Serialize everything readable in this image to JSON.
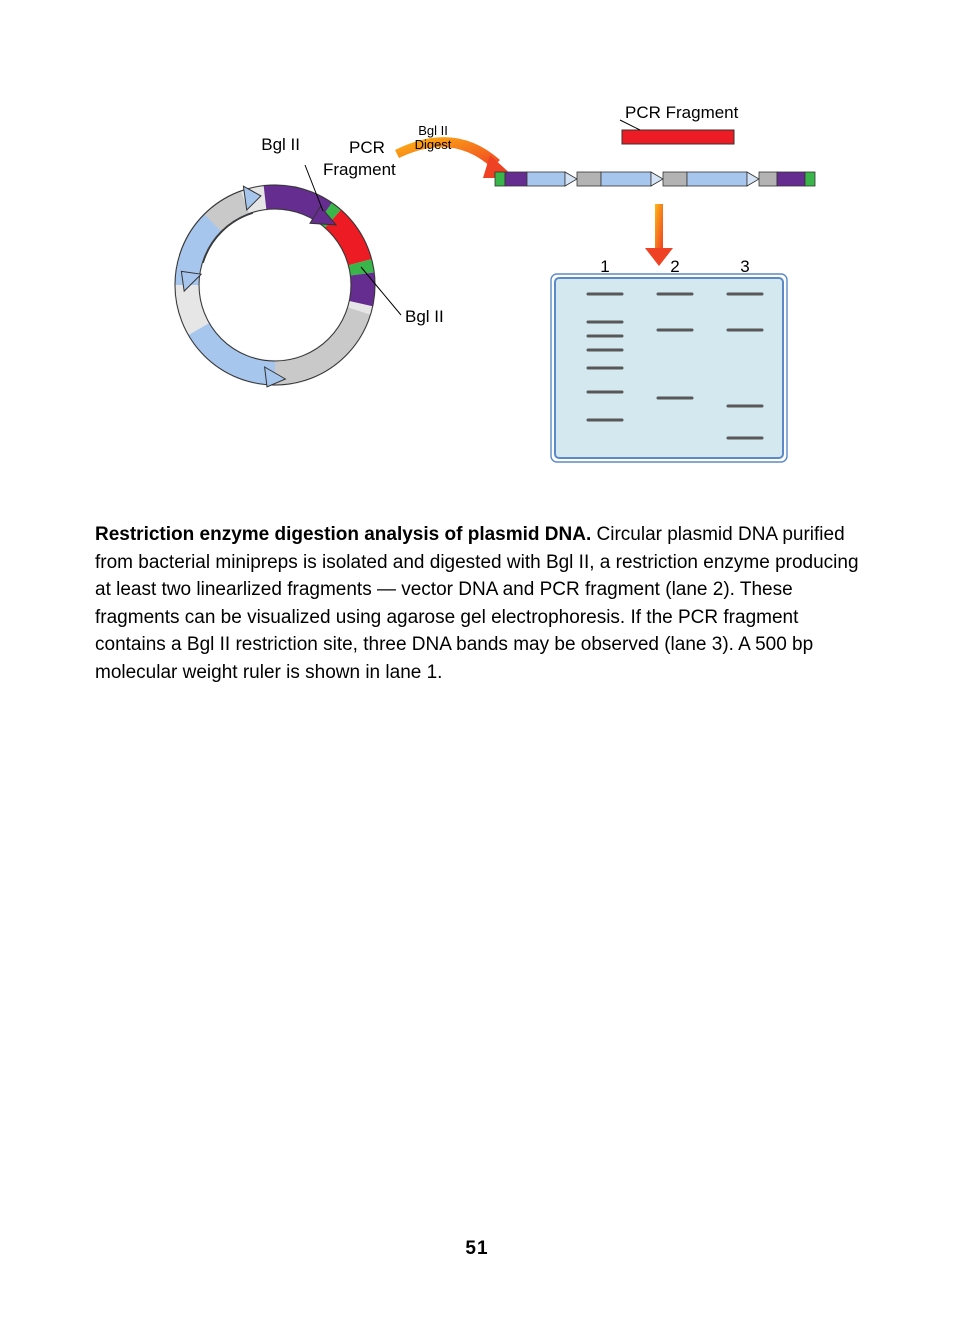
{
  "figure": {
    "plasmid": {
      "label_bgl_top": "Bgl II",
      "label_bgl_right": "Bgl II",
      "label_pcr_frag1": "PCR",
      "label_pcr_frag2": "Fragment",
      "digest_label1": "Bgl II",
      "digest_label2": "Digest",
      "colors": {
        "pcr_fragment": "#ed1c24",
        "bgl_site": "#39b54a",
        "purple_seg": "#662d91",
        "lightblue_seg": "#a7c6ed",
        "lightgray_seg": "#c9c9c9",
        "very_light": "#e6e6e6",
        "ring_stroke": "#333333"
      }
    },
    "linear": {
      "pcr_label": "PCR Fragment",
      "colors": {
        "backbone": "#a7c6ed",
        "arrow_fill": "#d4e3f5",
        "purple_end": "#662d91",
        "green_cap": "#39b54a",
        "red_frag": "#ed1c24",
        "gray_seg": "#b3b3b3"
      }
    },
    "gel": {
      "lane_labels": [
        "1",
        "2",
        "3"
      ],
      "outer_stroke": "#5b8ac6",
      "bg": "#d4e8ef",
      "band_color": "#585858",
      "lane1_bands_y": [
        16,
        44,
        58,
        72,
        90,
        114,
        142
      ],
      "lane2_bands_y": [
        16,
        52,
        120
      ],
      "lane3_bands_y": [
        16,
        52,
        128,
        160
      ]
    }
  },
  "caption": {
    "bold": "Restriction enzyme digestion analysis of plasmid DNA.",
    "rest": " Circular plasmid DNA purified from bacterial minipreps is isolated and digested with Bgl II, a restriction enzyme producing at least two linearlized fragments — vector DNA and PCR fragment (lane 2). These fragments can be visualized using agarose gel electrophoresis. If the PCR fragment contains a Bgl II restriction site, three DNA bands may be observed (lane 3). A 500 bp molecular weight ruler is shown in lane 1."
  },
  "page_number": "51"
}
